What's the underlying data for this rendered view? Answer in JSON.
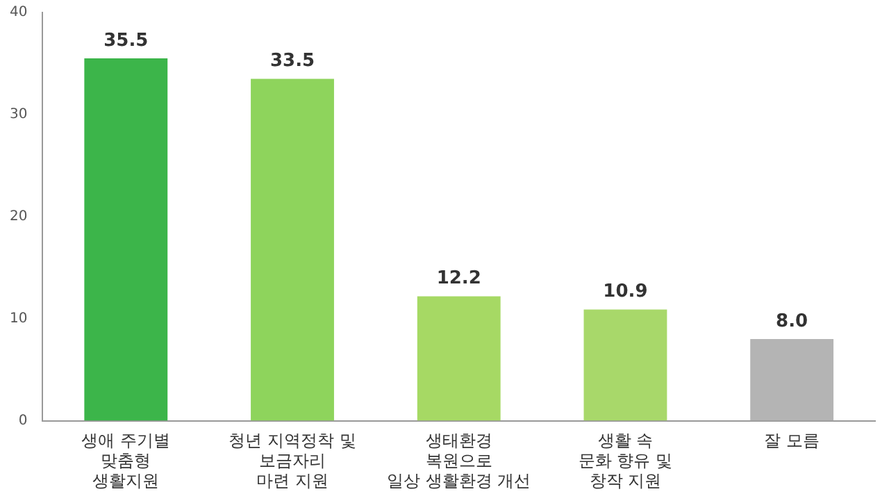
{
  "chart_data": {
    "type": "bar",
    "categories": [
      "생애 주기별\n맞춤형\n생활지원",
      "청년 지역정착 및\n보금자리\n마련 지원",
      "생태환경\n복원으로\n일상 생활환경 개선",
      "생활 속\n문화 향유 및\n창작 지원",
      "잘 모름"
    ],
    "values": [
      35.5,
      33.5,
      12.2,
      10.9,
      8.0
    ],
    "colors": [
      "#3cb54a",
      "#8ed45c",
      "#a6d964",
      "#a8d86a",
      "#b4b4b4"
    ],
    "value_labels": [
      "35.5",
      "33.5",
      "12.2",
      "10.9",
      "8.0"
    ],
    "ylim": [
      0,
      40
    ],
    "yticks": [
      0,
      10,
      20,
      30,
      40
    ],
    "grid": false,
    "legend": false
  }
}
